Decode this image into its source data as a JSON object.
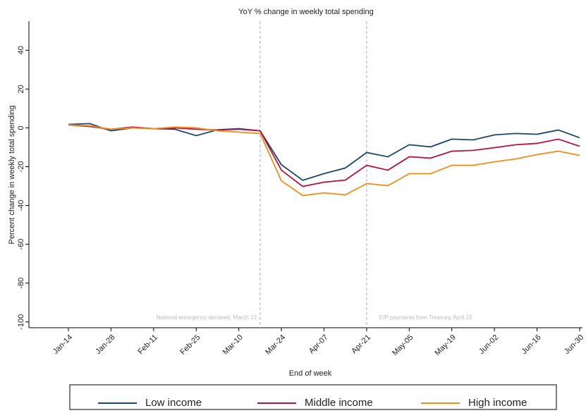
{
  "chart_data": {
    "type": "line",
    "title": "YoY % change in weekly total spending",
    "x_label": "End of week",
    "y_label": "Percent change in weekly total spending",
    "categories": [
      "Jan-14",
      null,
      "Jan-28",
      null,
      "Feb-11",
      null,
      "Feb-25",
      null,
      "Mar-10",
      null,
      "Mar-24",
      null,
      "Apr-07",
      null,
      "Apr-21",
      null,
      "May-05",
      null,
      "May-19",
      null,
      "Jun-02",
      null,
      "Jun-16",
      null,
      "Jun-30"
    ],
    "series": [
      {
        "name": "Low income",
        "color": "#1a476f",
        "values": [
          1.8,
          2.2,
          -1.5,
          0,
          -0.4,
          -0.7,
          -4,
          -1,
          -0.4,
          -1.5,
          -19,
          -27,
          -23.6,
          -20.7,
          -12.7,
          -14.9,
          -8.7,
          -9.8,
          -5.8,
          -6.2,
          -3.6,
          -2.9,
          -3.3,
          -1.1,
          -5.1
        ]
      },
      {
        "name": "Middle income",
        "color": "#b5123d",
        "values": [
          1.5,
          0.7,
          -0.7,
          0.4,
          -0.4,
          0,
          -0.7,
          -1.1,
          -0.7,
          -1.5,
          -21.8,
          -30.2,
          -28,
          -26.9,
          -19.3,
          -21.8,
          -14.9,
          -15.6,
          -12,
          -11.6,
          -10.2,
          -8.7,
          -8,
          -5.8,
          -9.5
        ]
      },
      {
        "name": "High income",
        "color": "#f28e1c",
        "values": [
          1.5,
          1.1,
          -0.7,
          0,
          -0.4,
          0.4,
          0,
          -1.5,
          -2.2,
          -2.9,
          -27.3,
          -34.9,
          -33.5,
          -34.5,
          -28.7,
          -29.8,
          -23.6,
          -23.6,
          -19.3,
          -19.3,
          -17.5,
          -16,
          -13.8,
          -12,
          -14.2
        ]
      }
    ],
    "annotations": [
      "National emergency declared, March 13",
      "EIP payments from Treasury, April 15"
    ],
    "ylim": [
      -103,
      55
    ],
    "yticks": [
      -100,
      -80,
      -60,
      -40,
      -20,
      0,
      20,
      40
    ],
    "legend": "bottom"
  }
}
